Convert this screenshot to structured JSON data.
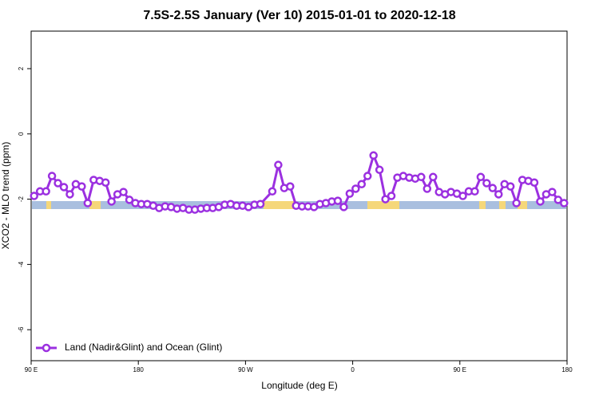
{
  "chart_data": {
    "type": "line",
    "title": "7.5S-2.5S January (Ver 10)   2015-01-01 to 2020-12-18",
    "xlabel": "Longitude (deg E)",
    "ylabel": "XCO2 - MLO trend (ppm)",
    "xlim": [
      -270,
      180
    ],
    "ylim": [
      -6.95,
      3.15
    ],
    "xticks": [
      {
        "value": -270,
        "label": "90 E"
      },
      {
        "value": -180,
        "label": "180"
      },
      {
        "value": -90,
        "label": "90 W"
      },
      0,
      {
        "value": 90,
        "label": "90 E"
      },
      180
    ],
    "yticks": [
      2,
      0,
      -2,
      -4,
      -6
    ],
    "legend": "bottom-left",
    "series": [
      {
        "name": "Land (Nadir&Glint) and Ocean (Glint)",
        "color": "#9b30e0",
        "x": [
          -267.5,
          -262.5,
          -257.5,
          -252.5,
          -247.5,
          -242.5,
          -237.5,
          -232.5,
          -227.5,
          -222.5,
          -217.5,
          -212.5,
          -207.5,
          -202.5,
          -197.5,
          -192.5,
          -187.5,
          -182.5,
          -177.5,
          -172.5,
          -167.5,
          -162.5,
          -157.5,
          -152.5,
          -147.5,
          -142.5,
          -137.5,
          -132.5,
          -127.5,
          -122.5,
          -117.5,
          -112.5,
          -107.5,
          -102.5,
          -97.5,
          -92.5,
          -87.5,
          -82.5,
          -77.5,
          -67.5,
          -62.5,
          -57.5,
          -52.5,
          -47.5,
          -42.5,
          -37.5,
          -32.5,
          -27.5,
          -22.5,
          -17.5,
          -12.5,
          -7.5,
          -2.5,
          2.5,
          7.5,
          12.5,
          17.5,
          22.5,
          27.5,
          32.5,
          37.5,
          42.5,
          47.5,
          52.5,
          57.5,
          62.5,
          67.5,
          72.5,
          77.5,
          82.5,
          87.5,
          92.5,
          97.5,
          102.5,
          107.5,
          112.5,
          117.5,
          122.5,
          127.5,
          132.5,
          137.5,
          142.5,
          147.5,
          152.5,
          157.5,
          162.5,
          167.5,
          172.5,
          177.5
        ],
        "values": [
          -1.9,
          -1.76,
          -1.76,
          -1.29,
          -1.51,
          -1.63,
          -1.85,
          -1.54,
          -1.61,
          -2.12,
          -1.41,
          -1.44,
          -1.49,
          -2.07,
          -1.85,
          -1.78,
          -2.02,
          -2.12,
          -2.15,
          -2.15,
          -2.2,
          -2.27,
          -2.22,
          -2.24,
          -2.29,
          -2.27,
          -2.32,
          -2.32,
          -2.29,
          -2.27,
          -2.27,
          -2.24,
          -2.17,
          -2.15,
          -2.2,
          -2.2,
          -2.24,
          -2.17,
          -2.15,
          -1.76,
          -0.95,
          -1.66,
          -1.61,
          -2.2,
          -2.22,
          -2.22,
          -2.24,
          -2.15,
          -2.12,
          -2.07,
          -2.05,
          -2.24,
          -1.83,
          -1.68,
          -1.54,
          -1.29,
          -0.66,
          -1.1,
          -2.0,
          -1.9,
          -1.34,
          -1.29,
          -1.34,
          -1.37,
          -1.32,
          -1.68,
          -1.32,
          -1.78,
          -1.85,
          -1.78,
          -1.83,
          -1.9,
          -1.76,
          -1.76,
          -1.32,
          -1.51,
          -1.66,
          -1.85,
          -1.54,
          -1.61,
          -2.12,
          -1.41,
          -1.44,
          -1.49,
          -2.07,
          -1.85,
          -1.78,
          -2.02,
          -2.12
        ]
      }
    ]
  }
}
